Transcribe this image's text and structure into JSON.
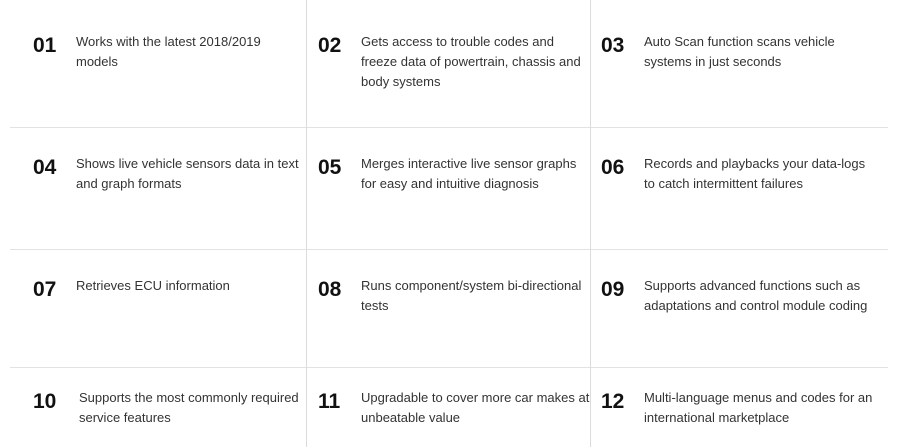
{
  "features": [
    {
      "number": "01",
      "text": "Works with the latest 2018/2019 models"
    },
    {
      "number": "02",
      "text": "Gets access to trouble codes and freeze data of powertrain, chassis and body systems"
    },
    {
      "number": "03",
      "text": "Auto Scan function scans vehicle systems in just seconds"
    },
    {
      "number": "04",
      "text": "Shows live vehicle sensors data in text and graph formats"
    },
    {
      "number": "05",
      "text": "Merges interactive live sensor graphs for easy and intuitive diagnosis"
    },
    {
      "number": "06",
      "text": "Records and playbacks your data-logs to catch intermittent failures"
    },
    {
      "number": "07",
      "text": "Retrieves ECU information"
    },
    {
      "number": "08",
      "text": "Runs component/system bi-directional tests"
    },
    {
      "number": "09",
      "text": "Supports advanced functions such as adaptations and control module coding"
    },
    {
      "number": "10",
      "text": "Supports the most commonly required service features"
    },
    {
      "number": "11",
      "text": "Upgradable to cover more car makes at unbeatable value"
    },
    {
      "number": "12",
      "text": "Multi-language menus and codes for an international marketplace"
    }
  ]
}
